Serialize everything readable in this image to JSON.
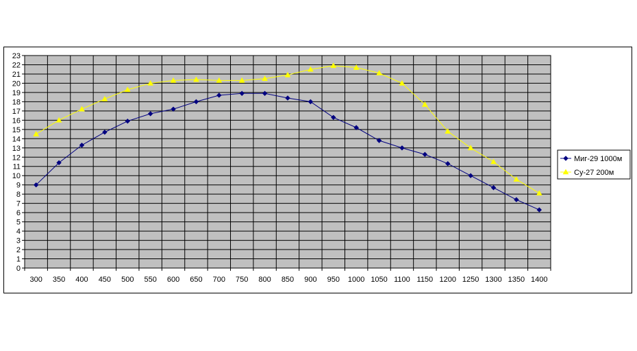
{
  "chart_data": {
    "type": "line",
    "title": "",
    "xlabel": "",
    "ylabel": "",
    "x": [
      300,
      350,
      400,
      450,
      500,
      550,
      600,
      650,
      700,
      750,
      800,
      850,
      900,
      950,
      1000,
      1050,
      1100,
      1150,
      1200,
      1250,
      1300,
      1350,
      1400
    ],
    "ylim": [
      0,
      23
    ],
    "yticks": [
      0,
      1,
      2,
      3,
      4,
      5,
      6,
      7,
      8,
      9,
      10,
      11,
      12,
      13,
      14,
      15,
      16,
      17,
      18,
      19,
      20,
      21,
      22,
      23
    ],
    "grid": true,
    "plot_background": "#c0c0c0",
    "legend_position": "right",
    "series": [
      {
        "name": "Миг-29 1000м",
        "color": "#000080",
        "marker": "diamond",
        "values": [
          9.0,
          11.4,
          13.3,
          14.7,
          15.9,
          16.7,
          17.2,
          18.0,
          18.7,
          18.9,
          18.9,
          18.4,
          18.0,
          16.3,
          15.2,
          13.8,
          13.0,
          12.3,
          11.3,
          10.0,
          8.7,
          7.4,
          6.3
        ]
      },
      {
        "name": "Су-27 200м",
        "color": "#ffff00",
        "marker": "triangle",
        "values": [
          14.5,
          16.0,
          17.2,
          18.3,
          19.3,
          20.0,
          20.3,
          20.4,
          20.3,
          20.3,
          20.5,
          20.9,
          21.5,
          21.9,
          21.7,
          21.1,
          20.0,
          17.7,
          14.8,
          13.0,
          11.5,
          9.6,
          8.1
        ]
      }
    ]
  }
}
